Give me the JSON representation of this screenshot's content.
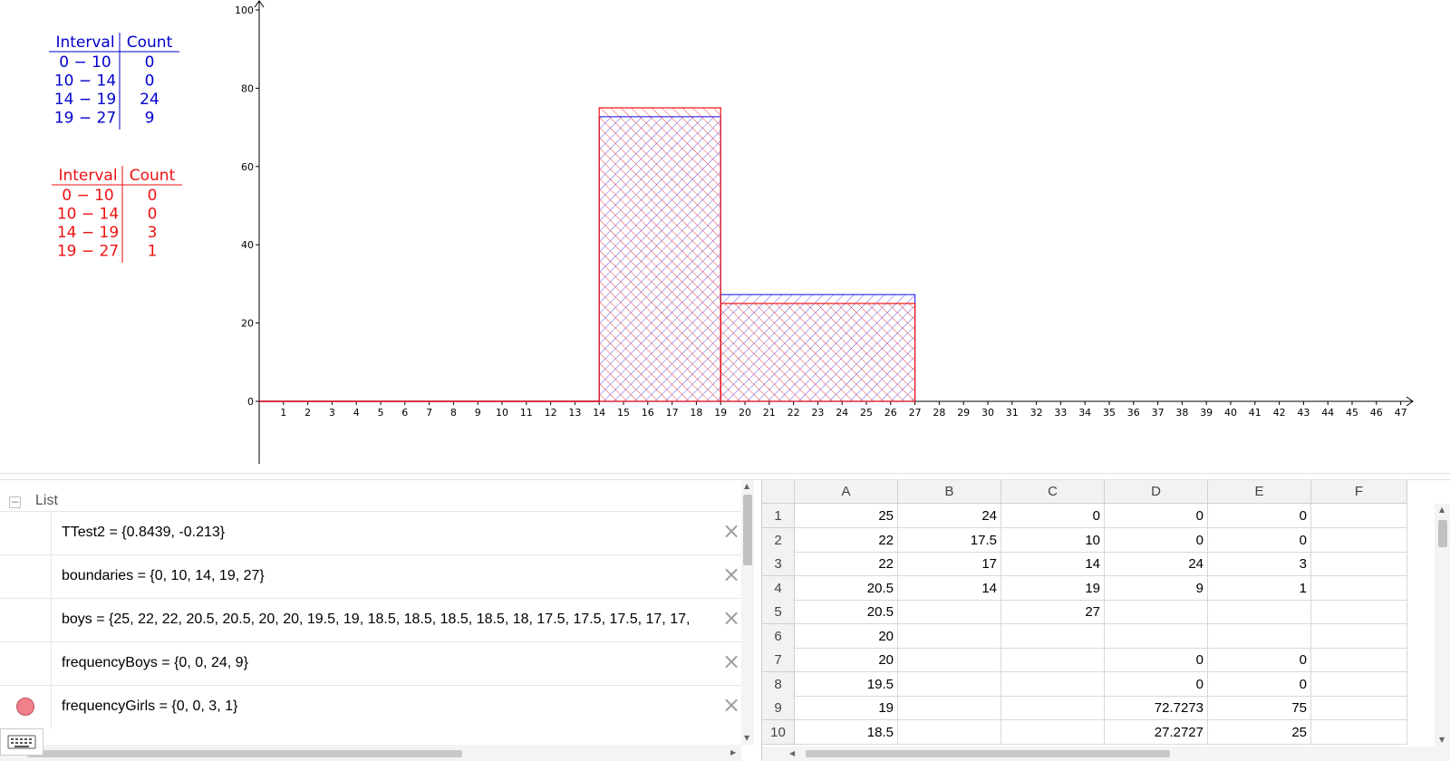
{
  "tables": {
    "boys": {
      "color": "#0000cc",
      "headers": [
        "Interval",
        "Count"
      ],
      "rows": [
        [
          "0 − 10",
          "0"
        ],
        [
          "10 − 14",
          "0"
        ],
        [
          "14 − 19",
          "24"
        ],
        [
          "19 − 27",
          "9"
        ]
      ]
    },
    "girls": {
      "color": "#ee1111",
      "headers": [
        "Interval",
        "Count"
      ],
      "rows": [
        [
          "0 − 10",
          "0"
        ],
        [
          "10 − 14",
          "0"
        ],
        [
          "14 − 19",
          "3"
        ],
        [
          "19 − 27",
          "1"
        ]
      ]
    }
  },
  "chart_data": {
    "type": "bar",
    "xlim": [
      0,
      48
    ],
    "ylim": [
      0,
      100
    ],
    "x_ticks": [
      1,
      2,
      3,
      4,
      5,
      6,
      7,
      8,
      9,
      10,
      11,
      12,
      13,
      14,
      15,
      16,
      17,
      18,
      19,
      20,
      21,
      22,
      23,
      24,
      25,
      26,
      27,
      28,
      29,
      30,
      31,
      32,
      33,
      34,
      35,
      36,
      37,
      38,
      39,
      40,
      41,
      42,
      43,
      44,
      45,
      46,
      47
    ],
    "y_ticks": [
      0,
      20,
      40,
      60,
      80,
      100
    ],
    "series": [
      {
        "color": "#3333ee",
        "bins": [
          {
            "from": 0,
            "to": 10,
            "height": 0
          },
          {
            "from": 10,
            "to": 14,
            "height": 0
          },
          {
            "from": 14,
            "to": 19,
            "height": 72.7273
          },
          {
            "from": 19,
            "to": 27,
            "height": 27.2727
          }
        ]
      },
      {
        "color": "#ee1111",
        "bins": [
          {
            "from": 0,
            "to": 10,
            "height": 0
          },
          {
            "from": 10,
            "to": 14,
            "height": 0
          },
          {
            "from": 14,
            "to": 19,
            "height": 75
          },
          {
            "from": 19,
            "to": 27,
            "height": 25
          }
        ]
      }
    ]
  },
  "algebra": {
    "header_label": "List",
    "items": [
      {
        "text": "TTest2 = {0.8439, -0.213}",
        "marble": false
      },
      {
        "text": "boundaries = {0, 10, 14, 19, 27}",
        "marble": false
      },
      {
        "text": "boys = {25, 22, 22, 20.5, 20.5, 20, 20, 19.5, 19, 18.5, 18.5, 18.5, 18.5, 18, 17.5, 17.5, 17.5, 17, 17,",
        "marble": false
      },
      {
        "text": "frequencyBoys = {0, 0, 24, 9}",
        "marble": false
      },
      {
        "text": "frequencyGirls = {0, 0, 3, 1}",
        "marble": true
      }
    ],
    "close_glyph": "×"
  },
  "spreadsheet": {
    "columns": [
      "A",
      "B",
      "C",
      "D",
      "E",
      "F"
    ],
    "rows": [
      {
        "n": "1",
        "cells": [
          "25",
          "24",
          "0",
          "0",
          "0",
          ""
        ]
      },
      {
        "n": "2",
        "cells": [
          "22",
          "17.5",
          "10",
          "0",
          "0",
          ""
        ]
      },
      {
        "n": "3",
        "cells": [
          "22",
          "17",
          "14",
          "24",
          "3",
          ""
        ]
      },
      {
        "n": "4",
        "cells": [
          "20.5",
          "14",
          "19",
          "9",
          "1",
          ""
        ]
      },
      {
        "n": "5",
        "cells": [
          "20.5",
          "",
          "27",
          "",
          "",
          ""
        ]
      },
      {
        "n": "6",
        "cells": [
          "20",
          "",
          "",
          "",
          "",
          ""
        ]
      },
      {
        "n": "7",
        "cells": [
          "20",
          "",
          "",
          "0",
          "0",
          ""
        ]
      },
      {
        "n": "8",
        "cells": [
          "19.5",
          "",
          "",
          "0",
          "0",
          ""
        ]
      },
      {
        "n": "9",
        "cells": [
          "19",
          "",
          "",
          "72.7273",
          "75",
          ""
        ]
      },
      {
        "n": "10",
        "cells": [
          "18.5",
          "",
          "",
          "27.2727",
          "25",
          ""
        ]
      }
    ]
  }
}
